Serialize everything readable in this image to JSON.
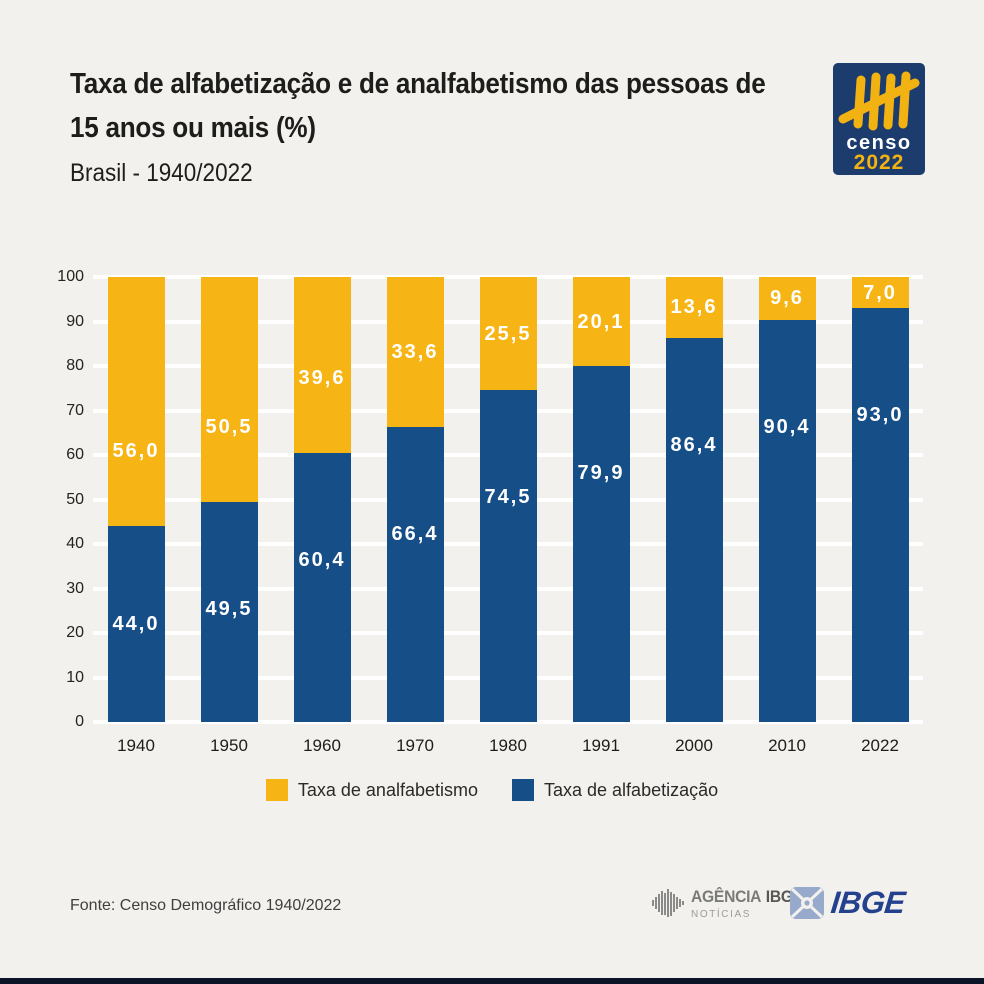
{
  "page": {
    "background": "#F2F1EE",
    "bottom_bar_color": "#0B1326"
  },
  "header": {
    "title_line1": "Taxa de alfabetização e de analfabetismo das pessoas de",
    "title_line2": "15 anos ou mais (%)",
    "subtitle": "Brasil - 1940/2022"
  },
  "censo_logo": {
    "text_censo": "censo",
    "text_year": "2022",
    "box_color": "#1B3C6D",
    "accent_color": "#F2B211"
  },
  "chart_data": {
    "type": "bar",
    "stacked": true,
    "title": "Taxa de alfabetização e de analfabetismo das pessoas de 15 anos ou mais (%)",
    "subtitle": "Brasil - 1940/2022",
    "categories": [
      "1940",
      "1950",
      "1960",
      "1970",
      "1980",
      "1991",
      "2000",
      "2010",
      "2022"
    ],
    "series": [
      {
        "name": "Taxa de alfabetização",
        "color": "#164E87",
        "position": "bottom",
        "values": [
          44.0,
          49.5,
          60.4,
          66.4,
          74.5,
          79.9,
          86.4,
          90.4,
          93.0
        ],
        "labels": [
          "44,0",
          "49,5",
          "60,4",
          "66,4",
          "74,5",
          "79,9",
          "86,4",
          "90,4",
          "93,0"
        ]
      },
      {
        "name": "Taxa de analfabetismo",
        "color": "#F7B515",
        "position": "top",
        "values": [
          56.0,
          50.5,
          39.6,
          33.6,
          25.5,
          20.1,
          13.6,
          9.6,
          7.0
        ],
        "labels": [
          "56,0",
          "50,5",
          "39,6",
          "33,6",
          "25,5",
          "20,1",
          "13,6",
          "9,6",
          "7,0"
        ]
      }
    ],
    "ylim": [
      0,
      100
    ],
    "yticks": [
      0,
      10,
      20,
      30,
      40,
      50,
      60,
      70,
      80,
      90,
      100
    ],
    "grid": true,
    "gridline_color": "#FFFFFF",
    "label_color": "#FFFFFF",
    "legend_position": "bottom",
    "legend": [
      {
        "label": "Taxa de analfabetismo",
        "color": "#F7B515"
      },
      {
        "label": "Taxa de alfabetização",
        "color": "#164E87"
      }
    ]
  },
  "footer": {
    "source": "Fonte: Censo Demográfico 1940/2022",
    "agencia_logo": {
      "word1": "AGÊNCIA",
      "word2": "IBGE",
      "line2": "NOTÍCIAS"
    },
    "ibge_logo": {
      "text": "IBGE"
    }
  }
}
